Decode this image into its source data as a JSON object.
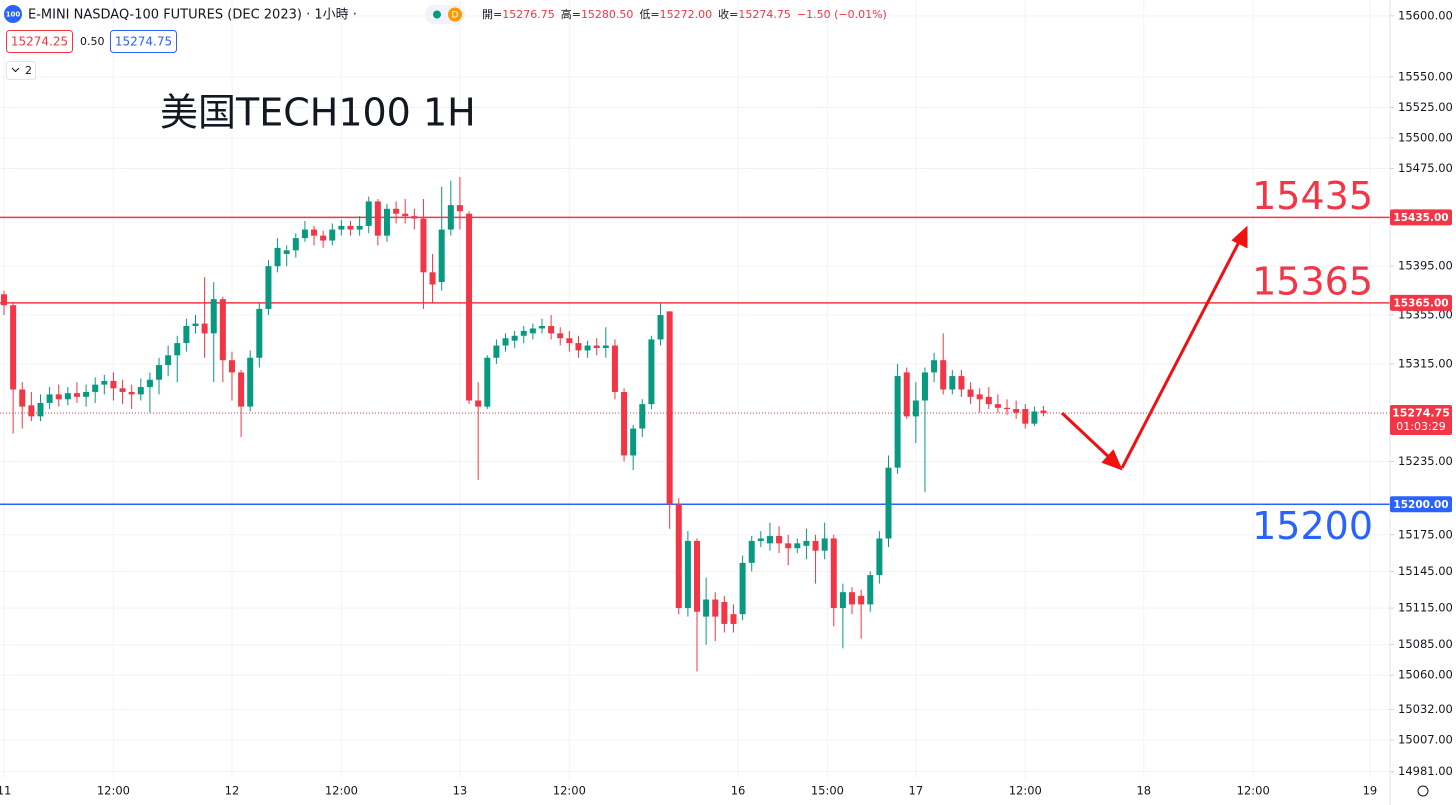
{
  "chart_data": {
    "type": "candlestick",
    "title": "美国TECH100 1H",
    "badge": "100",
    "symbol": "E-MINI NASDAQ-100 FUTURES (DEC 2023) · 1小時 ·",
    "status": "D",
    "ohlc_header": [
      {
        "label": "開=",
        "value": "15276.75"
      },
      {
        "label": "高=",
        "value": "15280.50"
      },
      {
        "label": "低=",
        "value": "15272.00"
      },
      {
        "label": "收=",
        "value": "15274.75"
      }
    ],
    "change": "−1.50 (−0.01%)",
    "bid": "15274.25",
    "spread": "0.50",
    "ask": "15274.75",
    "indicators": "2",
    "up_color": "#089981",
    "down_color": "#f23645",
    "open": [
      15372,
      15363,
      15294,
      15281,
      15272,
      15283,
      15290,
      15286,
      15291,
      15288,
      15292,
      15298,
      15301,
      15295,
      15292,
      15290,
      15296,
      15302,
      15314,
      15322,
      15332,
      15346,
      15348,
      15340,
      15368,
      15318,
      15308,
      15280,
      15320,
      15360,
      15395,
      15405,
      15408,
      15418,
      15425,
      15420,
      15416,
      15425,
      15428,
      15425,
      15428,
      15448,
      15420,
      15442,
      15438,
      15436,
      15434,
      15390,
      15382,
      15425,
      15445,
      15438,
      15285,
      15280,
      15320,
      15330,
      15334,
      15338,
      15340,
      15344,
      15346,
      15340,
      15336,
      15332,
      15326,
      15330,
      15328,
      15330,
      15292,
      15240,
      15262,
      15282,
      15335,
      15358,
      15200,
      15115,
      15170,
      15108,
      15122,
      15120,
      15110,
      15110,
      15152,
      15170,
      15168,
      15174,
      15168,
      15164,
      15166,
      15170,
      15162,
      15172,
      15115,
      15128,
      15125,
      15118,
      15142,
      15172,
      15230,
      15308,
      15272,
      15285,
      15308,
      15318,
      15294,
      15305,
      15294,
      15290,
      15288,
      15282,
      15279,
      15278,
      15278,
      15266,
      15276.75
    ],
    "high": [
      15375,
      15365,
      15300,
      15292,
      15290,
      15296,
      15298,
      15296,
      15300,
      15298,
      15304,
      15306,
      15308,
      15302,
      15298,
      15303,
      15308,
      15320,
      15330,
      15338,
      15352,
      15355,
      15386,
      15382,
      15370,
      15325,
      15310,
      15326,
      15365,
      15400,
      15418,
      15412,
      15422,
      15432,
      15428,
      15424,
      15430,
      15433,
      15432,
      15436,
      15452,
      15450,
      15446,
      15448,
      15450,
      15442,
      15450,
      15405,
      15460,
      15465,
      15468,
      15440,
      15300,
      15322,
      15335,
      15340,
      15342,
      15346,
      15348,
      15352,
      15355,
      15345,
      15342,
      15338,
      15334,
      15336,
      15345,
      15335,
      15295,
      15265,
      15286,
      15338,
      15365,
      15358,
      15205,
      15178,
      15172,
      15140,
      15128,
      15125,
      15118,
      15158,
      15174,
      15178,
      15185,
      15182,
      15175,
      15172,
      15180,
      15175,
      15185,
      15175,
      15135,
      15132,
      15130,
      15145,
      15178,
      15240,
      15315,
      15312,
      15300,
      15312,
      15324,
      15340,
      15310,
      15310,
      15300,
      15295,
      15296,
      15290,
      15286,
      15285,
      15282,
      15280,
      15280.5
    ],
    "low": [
      15355,
      15258,
      15262,
      15268,
      15268,
      15278,
      15280,
      15281,
      15283,
      15280,
      15283,
      15290,
      15285,
      15282,
      15278,
      15285,
      15275,
      15290,
      15305,
      15300,
      15325,
      15340,
      15320,
      15300,
      15300,
      15285,
      15255,
      15276,
      15312,
      15355,
      15390,
      15395,
      15402,
      15415,
      15412,
      15410,
      15412,
      15420,
      15420,
      15420,
      15422,
      15412,
      15415,
      15430,
      15430,
      15425,
      15360,
      15365,
      15375,
      15420,
      15425,
      15282,
      15220,
      15278,
      15315,
      15325,
      15328,
      15332,
      15335,
      15340,
      15335,
      15330,
      15325,
      15320,
      15320,
      15322,
      15320,
      15286,
      15235,
      15228,
      15255,
      15278,
      15330,
      15180,
      15110,
      15108,
      15063,
      15085,
      15088,
      15095,
      15095,
      15105,
      15145,
      15165,
      15162,
      15160,
      15150,
      15160,
      15155,
      15135,
      15155,
      15100,
      15082,
      15110,
      15090,
      15112,
      15135,
      15165,
      15225,
      15270,
      15250,
      15210,
      15300,
      15290,
      15290,
      15288,
      15282,
      15275,
      15278,
      15275,
      15273,
      15270,
      15262,
      15264,
      15272
    ],
    "close": [
      15363,
      15294,
      15280,
      15272,
      15283,
      15290,
      15286,
      15291,
      15288,
      15292,
      15298,
      15301,
      15295,
      15292,
      15290,
      15296,
      15302,
      15314,
      15322,
      15332,
      15346,
      15348,
      15340,
      15368,
      15318,
      15308,
      15280,
      15320,
      15360,
      15395,
      15410,
      15408,
      15418,
      15425,
      15420,
      15416,
      15425,
      15428,
      15425,
      15428,
      15448,
      15420,
      15442,
      15438,
      15436,
      15434,
      15390,
      15380,
      15425,
      15445,
      15440,
      15285,
      15280,
      15320,
      15330,
      15336,
      15338,
      15342,
      15344,
      15346,
      15340,
      15336,
      15332,
      15326,
      15330,
      15328,
      15330,
      15292,
      15240,
      15262,
      15282,
      15335,
      15355,
      15200,
      15115,
      15170,
      15112,
      15122,
      15108,
      15102,
      15102,
      15152,
      15170,
      15172,
      15174,
      15168,
      15164,
      15168,
      15170,
      15162,
      15172,
      15115,
      15128,
      15118,
      15118,
      15142,
      15172,
      15230,
      15305,
      15272,
      15285,
      15308,
      15318,
      15294,
      15305,
      15294,
      15288,
      15286,
      15282,
      15279,
      15278,
      15275,
      15266,
      15276,
      15274.75
    ],
    "xlim": [
      -0.44,
      152
    ],
    "xticks": [
      {
        "value": 0,
        "label": "11"
      },
      {
        "value": 12,
        "label": "12:00"
      },
      {
        "value": 25,
        "label": "12"
      },
      {
        "value": 37,
        "label": "12:00"
      },
      {
        "value": 50,
        "label": "13"
      },
      {
        "value": 62,
        "label": "12:00"
      },
      {
        "value": 80.5,
        "label": "16"
      },
      {
        "value": 90.3,
        "label": "15:00"
      },
      {
        "value": 100,
        "label": "17"
      },
      {
        "value": 112,
        "label": "12:00"
      },
      {
        "value": 125,
        "label": "18"
      },
      {
        "value": 137,
        "label": "12:00"
      },
      {
        "value": 149.8,
        "label": "19"
      }
    ],
    "ylim": [
      14966,
      15613
    ],
    "yticks": [
      {
        "value": 15600,
        "label": "15600.00"
      },
      {
        "value": 15550,
        "label": "15550.00"
      },
      {
        "value": 15525,
        "label": "15525.00"
      },
      {
        "value": 15500,
        "label": "15500.00"
      },
      {
        "value": 15475,
        "label": "15475.00"
      },
      {
        "value": 15395,
        "label": "15395.00"
      },
      {
        "value": 15355,
        "label": "15355.00"
      },
      {
        "value": 15315,
        "label": "15315.00"
      },
      {
        "value": 15235,
        "label": "15235.00"
      },
      {
        "value": 15175,
        "label": "15175.00"
      },
      {
        "value": 15145,
        "label": "15145.00"
      },
      {
        "value": 15115,
        "label": "15115.00"
      },
      {
        "value": 15085,
        "label": "15085.00"
      },
      {
        "value": 15060,
        "label": "15060.00"
      },
      {
        "value": 15032,
        "label": "15032.00"
      },
      {
        "value": 15007,
        "label": "15007.00"
      },
      {
        "value": 14981,
        "label": "14981.00"
      }
    ],
    "grid": true,
    "levels": [
      {
        "value": 15435,
        "label": "15435.00",
        "annotation": "15435",
        "color": "#f23645"
      },
      {
        "value": 15365,
        "label": "15365.00",
        "annotation": "15365",
        "color": "#f23645"
      },
      {
        "value": 15200,
        "label": "15200.00",
        "annotation": "15200",
        "color": "#2962ff"
      }
    ],
    "current": {
      "value": 15274.75,
      "label": "15274.75",
      "countdown": "01:03:29",
      "color": "#f23645"
    }
  }
}
